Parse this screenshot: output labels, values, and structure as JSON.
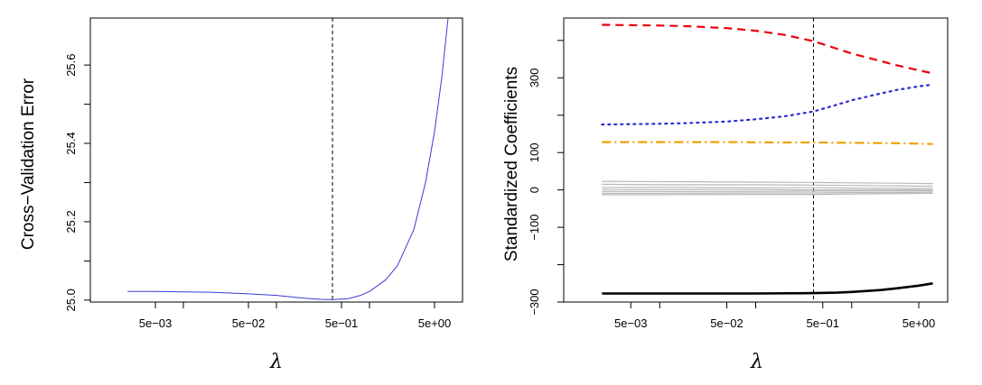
{
  "chart_data": [
    {
      "type": "line",
      "title": "",
      "xlabel": "λ",
      "ylabel": "Cross−Validation Error",
      "x_scale": "log",
      "xlim": [
        0.001,
        10
      ],
      "ylim": [
        24.995,
        25.72
      ],
      "x_ticks": [
        {
          "value": 0.005,
          "label": "5e−03"
        },
        {
          "value": 0.05,
          "label": "5e−02"
        },
        {
          "value": 0.5,
          "label": "5e−01"
        },
        {
          "value": 5,
          "label": "5e+00"
        }
      ],
      "x_minor_ticks": [
        0.01,
        0.1,
        1
      ],
      "y_ticks": [
        {
          "value": 25.0,
          "label": "25.0"
        },
        {
          "value": 25.2,
          "label": "25.2"
        },
        {
          "value": 25.4,
          "label": "25.4"
        },
        {
          "value": 25.6,
          "label": "25.6"
        }
      ],
      "y_minor_ticks": [
        25.1,
        25.3,
        25.5
      ],
      "vline": 0.4,
      "vline_style": "dashed",
      "series": [
        {
          "color": "#3b3bd6",
          "style": "solid",
          "x": [
            0.0025,
            0.005,
            0.01,
            0.02,
            0.05,
            0.1,
            0.2,
            0.3,
            0.4,
            0.6,
            0.8,
            1,
            1.5,
            2,
            3,
            4,
            5,
            6,
            7
          ],
          "y": [
            25.022,
            25.022,
            25.021,
            25.02,
            25.016,
            25.012,
            25.005,
            25.002,
            25.001,
            25.004,
            25.012,
            25.022,
            25.052,
            25.088,
            25.18,
            25.3,
            25.43,
            25.57,
            25.72
          ]
        }
      ]
    },
    {
      "type": "line",
      "title": "",
      "xlabel": "λ",
      "ylabel": "Standardized Coefficients",
      "x_scale": "log",
      "xlim": [
        0.001,
        10
      ],
      "ylim": [
        -300,
        460
      ],
      "x_ticks": [
        {
          "value": 0.005,
          "label": "5e−03"
        },
        {
          "value": 0.05,
          "label": "5e−02"
        },
        {
          "value": 0.5,
          "label": "5e−01"
        },
        {
          "value": 5,
          "label": "5e+00"
        }
      ],
      "x_minor_ticks": [
        0.01,
        0.1,
        1
      ],
      "y_ticks": [
        {
          "value": -300,
          "label": "−300"
        },
        {
          "value": -100,
          "label": "−100"
        },
        {
          "value": 0,
          "label": "0"
        },
        {
          "value": 100,
          "label": "100"
        },
        {
          "value": 300,
          "label": "300"
        }
      ],
      "y_minor_ticks": [
        -200,
        200,
        400
      ],
      "vline": 0.4,
      "vline_style": "dashed",
      "series": [
        {
          "color": "#e8000b",
          "style": "dashed",
          "width": 2.2,
          "x": [
            0.0025,
            0.005,
            0.01,
            0.02,
            0.05,
            0.1,
            0.2,
            0.4,
            0.7,
            1,
            2,
            3,
            5,
            7
          ],
          "y": [
            442,
            441,
            440,
            438,
            433,
            426,
            415,
            398,
            378,
            365,
            345,
            333,
            320,
            312
          ]
        },
        {
          "color": "#2b2bd0",
          "style": "dotted",
          "width": 2.2,
          "x": [
            0.0025,
            0.005,
            0.01,
            0.02,
            0.05,
            0.1,
            0.2,
            0.4,
            0.7,
            1,
            2,
            3,
            5,
            7
          ],
          "y": [
            175,
            176,
            177,
            179,
            183,
            189,
            197,
            210,
            228,
            240,
            258,
            268,
            277,
            282
          ]
        },
        {
          "color": "#f0a000",
          "style": "dashdot",
          "width": 2.2,
          "x": [
            0.0025,
            0.01,
            0.05,
            0.2,
            0.4,
            1,
            3,
            7
          ],
          "y": [
            128,
            128,
            128,
            127,
            127,
            126,
            125,
            123
          ]
        },
        {
          "color": "#b8b8b8",
          "style": "solid",
          "width": 1.2,
          "x": [
            0.0025,
            0.01,
            0.1,
            0.4,
            1,
            3,
            7
          ],
          "y": [
            23,
            22,
            21,
            20,
            19,
            18,
            17
          ]
        },
        {
          "color": "#b8b8b8",
          "style": "solid",
          "width": 1.2,
          "x": [
            0.0025,
            0.01,
            0.1,
            0.4,
            1,
            3,
            7
          ],
          "y": [
            15,
            14,
            14,
            13,
            12,
            11,
            10
          ]
        },
        {
          "color": "#b8b8b8",
          "style": "solid",
          "width": 1.2,
          "x": [
            0.0025,
            0.01,
            0.1,
            0.4,
            1,
            3,
            7
          ],
          "y": [
            7,
            7,
            6,
            6,
            5,
            4,
            4
          ]
        },
        {
          "color": "#b8b8b8",
          "style": "solid",
          "width": 1.2,
          "x": [
            0.0025,
            0.01,
            0.1,
            0.4,
            1,
            3,
            7
          ],
          "y": [
            1,
            1,
            1,
            0,
            0,
            0,
            0
          ]
        },
        {
          "color": "#b8b8b8",
          "style": "solid",
          "width": 1.2,
          "x": [
            0.0025,
            0.01,
            0.1,
            0.4,
            1,
            3,
            7
          ],
          "y": [
            -4,
            -4,
            -4,
            -3,
            -3,
            -3,
            -2
          ]
        },
        {
          "color": "#b8b8b8",
          "style": "solid",
          "width": 1.2,
          "x": [
            0.0025,
            0.01,
            0.1,
            0.4,
            1,
            3,
            7
          ],
          "y": [
            -9,
            -9,
            -8,
            -8,
            -7,
            -7,
            -6
          ]
        },
        {
          "color": "#b8b8b8",
          "style": "solid",
          "width": 1.2,
          "x": [
            0.0025,
            0.01,
            0.1,
            0.4,
            1,
            3,
            7
          ],
          "y": [
            -13,
            -13,
            -12,
            -12,
            -11,
            -10,
            -9
          ]
        },
        {
          "color": "#000000",
          "style": "solid",
          "width": 2.6,
          "x": [
            0.0025,
            0.005,
            0.01,
            0.05,
            0.1,
            0.4,
            0.7,
            1,
            2,
            3,
            5,
            7
          ],
          "y": [
            -277,
            -277,
            -277,
            -277,
            -277,
            -276,
            -275,
            -273,
            -268,
            -263,
            -256,
            -250
          ]
        }
      ]
    }
  ]
}
